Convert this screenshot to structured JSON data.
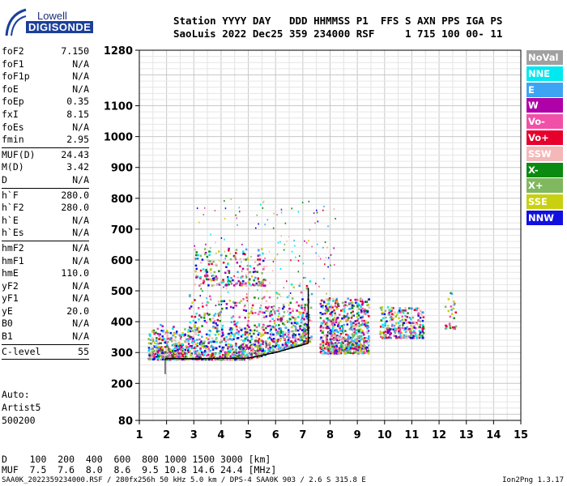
{
  "logo": {
    "line1": "Lowell",
    "line2": "DIGISONDE"
  },
  "header": {
    "line1": "Station YYYY DAY   DDD HHMMSS P1  FFS S AXN PPS IGA PS",
    "line2": "SaoLuis 2022 Dec25 359 234000 RSF     1 715 100 00- 11"
  },
  "params": [
    {
      "label": "foF2",
      "value": "7.150"
    },
    {
      "label": "foF1",
      "value": "N/A"
    },
    {
      "label": "foF1p",
      "value": "N/A"
    },
    {
      "label": "foE",
      "value": "N/A"
    },
    {
      "label": "foEp",
      "value": "0.35"
    },
    {
      "label": "fxI",
      "value": "8.15"
    },
    {
      "label": "foEs",
      "value": "N/A"
    },
    {
      "label": "fmin",
      "value": "2.95"
    },
    {
      "sep": true
    },
    {
      "label": "MUF(D)",
      "value": "24.43"
    },
    {
      "label": "M(D)",
      "value": "3.42"
    },
    {
      "label": "D",
      "value": "N/A"
    },
    {
      "sep": true
    },
    {
      "label": "h`F",
      "value": "280.0"
    },
    {
      "label": "h`F2",
      "value": "280.0"
    },
    {
      "label": "h`E",
      "value": "N/A"
    },
    {
      "label": "h`Es",
      "value": "N/A"
    },
    {
      "sep": true
    },
    {
      "label": "hmF2",
      "value": "N/A"
    },
    {
      "label": "hmF1",
      "value": "N/A"
    },
    {
      "label": "hmE",
      "value": "110.0"
    },
    {
      "label": "yF2",
      "value": "N/A"
    },
    {
      "label": "yF1",
      "value": "N/A"
    },
    {
      "label": "yE",
      "value": "20.0"
    },
    {
      "label": "B0",
      "value": "N/A"
    },
    {
      "label": "B1",
      "value": "N/A"
    },
    {
      "sep": true
    },
    {
      "label": "C-level",
      "value": "55"
    },
    {
      "sep": true
    }
  ],
  "auto": {
    "line1": "Auto:",
    "line2": "Artist5",
    "line3": "500200"
  },
  "legend": [
    {
      "label": "NoVal",
      "color": "#a0a0a0"
    },
    {
      "label": "NNE",
      "color": "#00e8f0"
    },
    {
      "label": "E",
      "color": "#3da4f4"
    },
    {
      "label": "W",
      "color": "#b000a8"
    },
    {
      "label": "Vo-",
      "color": "#f050a8"
    },
    {
      "label": "Vo+",
      "color": "#e8002c"
    },
    {
      "label": "SSW",
      "color": "#f4b8b8"
    },
    {
      "label": "X-",
      "color": "#0a8a10"
    },
    {
      "label": "X+",
      "color": "#80b860"
    },
    {
      "label": "SSE",
      "color": "#c8d010"
    },
    {
      "label": "NNW",
      "color": "#1010e0"
    }
  ],
  "bottom": {
    "line1": "D    100  200  400  600  800 1000 1500 3000 [km]",
    "line2": "MUF  7.5  7.6  8.0  8.6  9.5 10.8 14.6 24.4 [MHz]"
  },
  "footer": {
    "left": "SAA0K_2022359234000.RSF / 280fx256h 50 kHz 5.0 km / DPS-4 SAA0K 903 / 2.6 S 315.8 E",
    "right": "Ion2Png 1.3.17"
  },
  "chart_data": {
    "type": "scatter",
    "x_ticks": [
      "1",
      "2",
      "3",
      "4",
      "5",
      "6",
      "7",
      "8",
      "9",
      "10",
      "11",
      "12",
      "13",
      "14",
      "15"
    ],
    "y_ticks": [
      "80",
      "200",
      "300",
      "400",
      "500",
      "600",
      "700",
      "800",
      "900",
      "1000",
      "1100",
      "1280"
    ],
    "xlim": [
      1,
      15
    ],
    "ylim": [
      80,
      1280
    ],
    "grid": true,
    "trace": {
      "color": "#000000",
      "points": [
        [
          1.95,
          280
        ],
        [
          3,
          280
        ],
        [
          5,
          282
        ],
        [
          6,
          300
        ],
        [
          7,
          325
        ],
        [
          7.2,
          330
        ]
      ]
    },
    "echo_bands": [
      {
        "x": [
          1.3,
          7.3
        ],
        "y": [
          280,
          470
        ]
      },
      {
        "x": [
          7.6,
          9.4
        ],
        "y": [
          300,
          480
        ]
      },
      {
        "x": [
          9.8,
          11.4
        ],
        "y": [
          350,
          450
        ]
      },
      {
        "x": [
          3,
          5.6
        ],
        "y": [
          520,
          640
        ]
      },
      {
        "x": [
          12.2,
          12.6
        ],
        "y": [
          380,
          500
        ]
      }
    ]
  }
}
